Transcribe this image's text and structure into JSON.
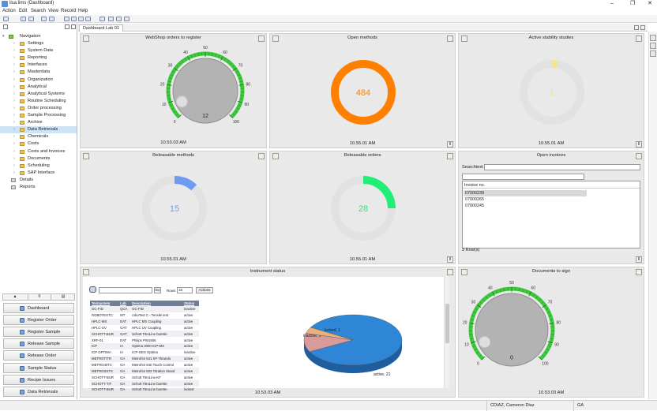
{
  "window": {
    "title": "lisa.lims (Dashboard)"
  },
  "menu": [
    "Action",
    "Edit",
    "Search",
    "View",
    "Record",
    "Help"
  ],
  "navigation": {
    "root": "Navigation",
    "items": [
      "Settings",
      "System Data",
      "Reporting",
      "Interfaces",
      "Masterdata",
      "Organization",
      "Analytical",
      "Analytical Systems",
      "Routine Scheduling",
      "Order processing",
      "Sample Processing",
      "Archive",
      "Data Retrievals",
      "Chemicals",
      "Costs",
      "Costs and Invoices",
      "Documents",
      "Scheduling",
      "SAP Interface"
    ],
    "selected": "Data Retrievals",
    "extra": [
      "Details",
      "Reports"
    ]
  },
  "nav_buttons": [
    "Dashboard",
    "Register Order",
    "Register Sample",
    "Release Sample",
    "Release Order",
    "Sample Status",
    "Recipe Issues",
    "Data Retrievals"
  ],
  "tab": {
    "label": "Dashboard Lab 01"
  },
  "panels": {
    "webshop": {
      "title": "WebShop orders to register",
      "value": "12",
      "time": "10.53.03 AM",
      "ticks": [
        "0",
        "10",
        "20",
        "30",
        "40",
        "50",
        "60",
        "70",
        "80",
        "90",
        "100"
      ]
    },
    "open_methods": {
      "title": "Open methods",
      "value": "484",
      "time": "10.55.01 AM",
      "color": "#ff8000"
    },
    "stability": {
      "title": "Active stability studies",
      "value": "1",
      "time": "10.55.01 AM",
      "color": "#f5e68a"
    },
    "releasable_methods": {
      "title": "Releasable methods",
      "value": "15",
      "time": "10.55.01 AM",
      "color": "#6f9cf0"
    },
    "releasable_orders": {
      "title": "Releasable orders",
      "value": "28",
      "time": "10.55.01 AM",
      "color": "#22ee77"
    },
    "open_invoices": {
      "title": "Open invoices",
      "search_label": "Searchtext",
      "column": "Invoice no.",
      "rows": [
        "07000239",
        "07000265",
        "07000245"
      ],
      "count": "3 Row(s)"
    },
    "instrument_status": {
      "title": "Instrument status",
      "time": "10.53.03 AM",
      "go": "Go",
      "rows_label": "Rows",
      "rows_value": "15",
      "actions": "Actions",
      "columns": [
        "Textsystem",
        "Lab",
        "Description",
        "Status"
      ],
      "rows": [
        [
          "GC-FID",
          "QCA",
          "GC-FID",
          "inactive"
        ],
        [
          "ROBOTESTC",
          "MT",
          "roboTest C - Tensile test",
          "active"
        ],
        [
          "HPLC-MS",
          "EAT",
          "HPLC MS Coupling",
          "active"
        ],
        [
          "HPLC-UV",
          "GAT",
          "HPLC UV Coupling",
          "active"
        ],
        [
          "SCHOTT-BUR",
          "GAT",
          "Schott TitroLine burette",
          "active"
        ],
        [
          "XRF-01",
          "EAT",
          "Philips PW1606",
          "active"
        ],
        [
          "ICP",
          "IA",
          "Optima 3000 ICP-MS",
          "active"
        ],
        [
          "ICP OPTIMA",
          "IA",
          "ICP-OES Optima",
          "inactive"
        ],
        [
          "METROTITR",
          "GA",
          "Metrohm 841 KF-Titrando",
          "active"
        ],
        [
          "METRO40TC",
          "GA",
          "Metrohm 840 Touch Control",
          "active"
        ],
        [
          "METROSSTS",
          "GA",
          "Metrohm 803 Titration Stand",
          "active"
        ],
        [
          "SCHOTT-BUR",
          "GA",
          "Schott TitroLine KF",
          "active"
        ],
        [
          "SCHOTT-TIT",
          "GA",
          "Schott TitroLine burette",
          "active"
        ],
        [
          "SCHOTT-BUR",
          "GA",
          "Schott TitroLine burette",
          "locked"
        ]
      ],
      "pie": [
        {
          "label": "active, 21",
          "value": 21,
          "color": "#2f86d6"
        },
        {
          "label": "inactive, 3",
          "value": 3,
          "color": "#d99a9a"
        },
        {
          "label": "locked, 1",
          "value": 1,
          "color": "#e8b07a"
        }
      ]
    },
    "documents": {
      "title": "Documents to sign",
      "value": "0",
      "time": "10.53.03 AM",
      "ticks": [
        "0",
        "10",
        "20",
        "30",
        "40",
        "50",
        "60",
        "70",
        "80",
        "90",
        "100"
      ]
    }
  },
  "status_bar": {
    "user": "CDIAZ, Cameron Diaz",
    "lab": "GA"
  }
}
